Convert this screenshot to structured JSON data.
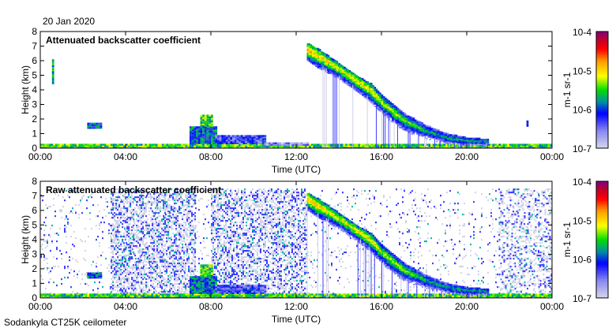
{
  "date": "20 Jan 2020",
  "footer": "Sodankyla CT25K ceilometer",
  "chart_data": [
    {
      "type": "heatmap",
      "title": "Attenuated backscatter coefficient",
      "xlabel": "Time (UTC)",
      "ylabel": "Height (km)",
      "xlim": [
        0,
        24
      ],
      "ylim": [
        0,
        8
      ],
      "xticks": [
        "00:00",
        "04:00",
        "08:00",
        "12:00",
        "16:00",
        "20:00",
        "00:00"
      ],
      "yticks": [
        "0",
        "1",
        "2",
        "3",
        "4",
        "5",
        "6",
        "7",
        "8"
      ],
      "colorbar": {
        "label": "m-1 sr-1",
        "ticks": [
          "10-7",
          "10-6",
          "10-5",
          "10-4"
        ],
        "range_log10": [
          -7,
          -4
        ]
      },
      "layers": [
        [
          0,
          24,
          0,
          0.3,
          -5.5
        ],
        [
          0.55,
          0.65,
          4.4,
          6.0,
          -5.8
        ],
        [
          2.2,
          2.9,
          1.35,
          1.7,
          -6.0
        ],
        [
          7.0,
          8.2,
          0.3,
          1.5,
          -5.9
        ],
        [
          7.5,
          8.0,
          1.5,
          2.3,
          -5.5
        ],
        [
          8.2,
          10.5,
          0.3,
          0.8,
          -6.3
        ],
        [
          10.5,
          12.5,
          0.2,
          0.35,
          -6.6
        ],
        [
          22.8,
          22.9,
          1.5,
          1.9,
          -6.2
        ]
      ],
      "descending_layer": [
        [
          12.5,
          6.3,
          7.2,
          -4.8
        ],
        [
          13.0,
          5.8,
          6.8,
          -4.9
        ],
        [
          14.0,
          5.0,
          5.8,
          -5.1
        ],
        [
          15.0,
          4.0,
          4.8,
          -5.0
        ],
        [
          15.5,
          3.4,
          4.4,
          -5.0
        ],
        [
          16.0,
          2.6,
          3.6,
          -5.2
        ],
        [
          16.5,
          2.0,
          3.0,
          -5.2
        ],
        [
          17.0,
          1.4,
          2.4,
          -5.3
        ],
        [
          18.0,
          0.8,
          1.6,
          -5.6
        ],
        [
          19.0,
          0.4,
          1.0,
          -5.7
        ],
        [
          20.0,
          0.3,
          0.7,
          -5.6
        ],
        [
          21.0,
          0.3,
          0.6,
          -5.8
        ]
      ],
      "noise_regions": []
    },
    {
      "type": "heatmap",
      "title": "Raw attenuated backscatter coefficient",
      "xlabel": "Time (UTC)",
      "ylabel": "Height (km)",
      "xlim": [
        0,
        24
      ],
      "ylim": [
        0,
        8
      ],
      "xticks": [
        "00:00",
        "04:00",
        "08:00",
        "12:00",
        "16:00",
        "20:00",
        "00:00"
      ],
      "yticks": [
        "0",
        "1",
        "2",
        "3",
        "4",
        "5",
        "6",
        "7",
        "8"
      ],
      "colorbar": {
        "label": "m-1 sr-1",
        "ticks": [
          "10-7",
          "10-6",
          "10-5",
          "10-4"
        ],
        "range_log10": [
          -7,
          -4
        ]
      },
      "layers": [
        [
          0,
          24,
          0,
          0.3,
          -5.5
        ],
        [
          2.2,
          2.9,
          1.35,
          1.7,
          -6.0
        ],
        [
          7.0,
          8.2,
          0.3,
          1.5,
          -5.9
        ],
        [
          7.5,
          8.0,
          1.5,
          2.3,
          -5.5
        ],
        [
          8.2,
          10.5,
          0.3,
          0.8,
          -6.3
        ]
      ],
      "descending_layer": [
        [
          12.5,
          6.3,
          7.2,
          -4.8
        ],
        [
          13.0,
          5.8,
          6.8,
          -4.9
        ],
        [
          14.0,
          5.0,
          5.8,
          -5.1
        ],
        [
          15.0,
          4.0,
          4.8,
          -5.0
        ],
        [
          15.5,
          3.4,
          4.4,
          -5.0
        ],
        [
          16.0,
          2.6,
          3.6,
          -5.2
        ],
        [
          16.5,
          2.0,
          3.0,
          -5.2
        ],
        [
          17.0,
          1.4,
          2.4,
          -5.3
        ],
        [
          18.0,
          0.8,
          1.6,
          -5.6
        ],
        [
          19.0,
          0.4,
          1.0,
          -5.7
        ],
        [
          20.0,
          0.3,
          0.7,
          -5.6
        ],
        [
          21.0,
          0.3,
          0.6,
          -5.8
        ]
      ],
      "noise_regions": [
        [
          0,
          24,
          0.08
        ],
        [
          3.3,
          7.3,
          0.55
        ],
        [
          8.0,
          12.5,
          0.5
        ],
        [
          21.5,
          24,
          0.3
        ]
      ]
    }
  ]
}
